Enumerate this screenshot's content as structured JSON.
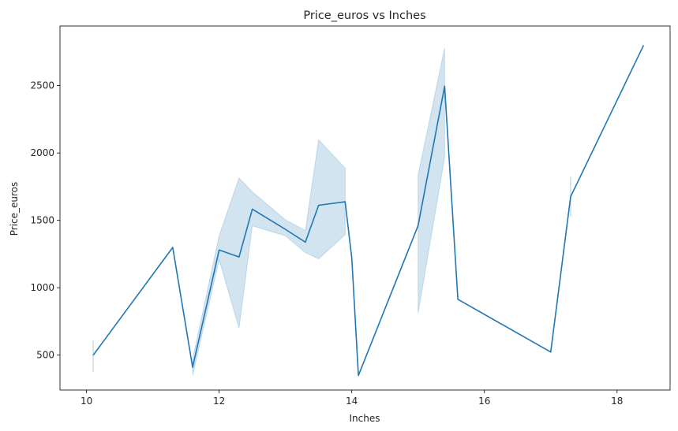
{
  "chart_data": {
    "type": "line",
    "title": "Price_euros vs Inches",
    "xlabel": "Inches",
    "ylabel": "Price_euros",
    "xlim": [
      9.6,
      18.8
    ],
    "ylim": [
      241,
      2942
    ],
    "xticks": [
      10,
      12,
      14,
      16,
      18
    ],
    "yticks": [
      500,
      1000,
      1500,
      2000,
      2500
    ],
    "grid": false,
    "line_color": "#1f77b4",
    "band_color": "#1f77b4",
    "series": [
      {
        "x": [
          10.1,
          11.3,
          11.6,
          12.0,
          12.3,
          12.5,
          13.0,
          13.3,
          13.5,
          13.9,
          14.0,
          14.1,
          15.0,
          15.4,
          15.6,
          17.0,
          17.3,
          18.4
        ],
        "values": [
          499,
          1299,
          410,
          1280,
          1228,
          1583,
          1433,
          1338,
          1612,
          1638,
          1219,
          349,
          1461,
          2495,
          914,
          523,
          1676,
          2799
        ],
        "ci_low": [
          377,
          null,
          349,
          1208,
          700,
          1459,
          1385,
          1261,
          1214,
          1393,
          null,
          null,
          810,
          1967,
          null,
          null,
          1530,
          null
        ],
        "ci_high": [
          610,
          null,
          470,
          1386,
          1815,
          1712,
          1504,
          1425,
          2099,
          1887,
          null,
          null,
          1839,
          2780,
          null,
          null,
          1822,
          null
        ]
      }
    ]
  }
}
